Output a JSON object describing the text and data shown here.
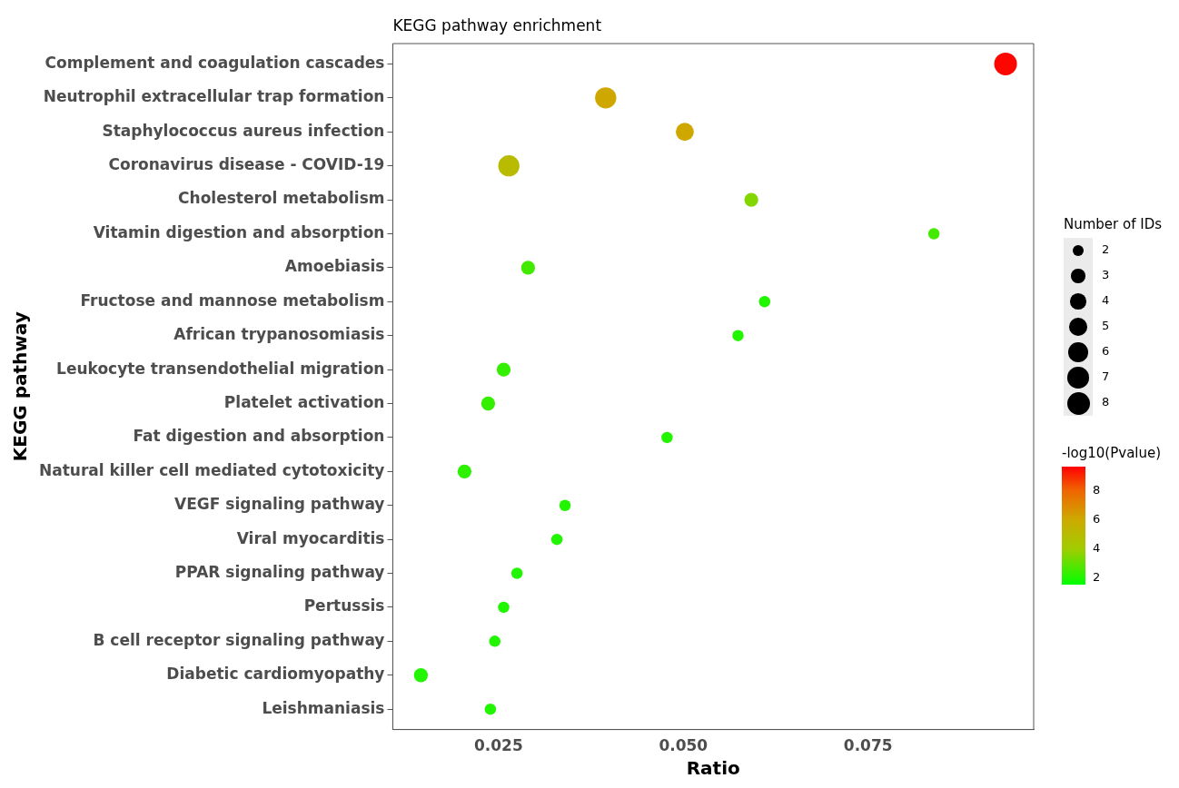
{
  "chart_data": {
    "type": "bubble",
    "title": "KEGG pathway enrichment",
    "xlabel": "Ratio",
    "ylabel": "KEGG pathway",
    "legend_title": "Number of IDs",
    "clabel": "-log10(Pvalue)",
    "categories": [
      "Complement and coagulation cascades",
      "Neutrophil extracellular trap formation",
      "Staphylococcus aureus infection",
      "Coronavirus disease - COVID-19",
      "Cholesterol metabolism",
      "Vitamin digestion and absorption",
      "Amoebiasis",
      "Fructose and mannose metabolism",
      "African trypanosomiasis",
      "Leukocyte transendothelial migration",
      "Platelet activation",
      "Fat digestion and absorption",
      "Natural killer cell mediated cytotoxicity",
      "VEGF signaling pathway",
      "Viral myocarditis",
      "PPAR signaling pathway",
      "Pertussis",
      "B cell receptor signaling pathway",
      "Diabetic cardiomyopathy",
      "Leishmaniasis"
    ],
    "values": [
      0.0936,
      0.0395,
      0.0502,
      0.0264,
      0.0592,
      0.0839,
      0.029,
      0.061,
      0.0574,
      0.0257,
      0.0236,
      0.0478,
      0.0204,
      0.034,
      0.0329,
      0.0275,
      0.0257,
      0.0245,
      0.0145,
      0.0239
    ],
    "sizes": [
      8,
      7,
      5,
      7,
      3,
      2,
      3,
      2,
      2,
      3,
      3,
      2,
      3,
      2,
      2,
      2,
      2,
      2,
      3,
      2
    ],
    "cvalues": [
      9.5,
      6,
      6,
      5,
      3.5,
      2.5,
      2.5,
      2,
      2,
      2.3,
      2.3,
      2,
      2.2,
      2,
      2,
      2,
      2,
      2,
      2,
      2
    ],
    "size_legend": [
      2,
      3,
      4,
      5,
      6,
      7,
      8
    ],
    "clim": [
      1.5,
      9.6
    ],
    "cticks": [
      2,
      4,
      6,
      8
    ],
    "orientation": "horizontal",
    "xlim": [
      0.0107,
      0.0974
    ],
    "xticks": [
      {
        "value": 0.025,
        "label": "0.025"
      },
      {
        "value": 0.05,
        "label": "0.050"
      },
      {
        "value": 0.075,
        "label": "0.075"
      }
    ],
    "grid": false
  }
}
